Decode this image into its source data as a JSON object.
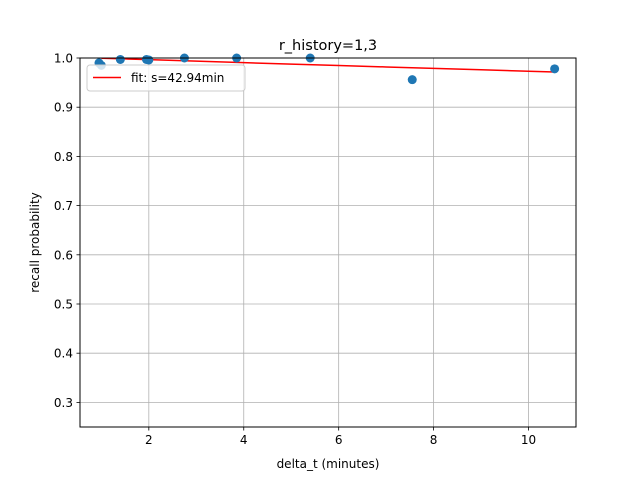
{
  "chart_data": {
    "type": "scatter",
    "title": "r_history=1,3",
    "xlabel": "delta_t (minutes)",
    "ylabel": "recall probability",
    "xlim": [
      0.55,
      11.0
    ],
    "ylim": [
      0.25,
      1.0
    ],
    "xticks": [
      2,
      4,
      6,
      8,
      10
    ],
    "yticks": [
      0.3,
      0.4,
      0.5,
      0.6,
      0.7,
      0.8,
      0.9,
      1.0
    ],
    "xtick_labels": [
      "2",
      "4",
      "6",
      "8",
      "10"
    ],
    "ytick_labels": [
      "0.3",
      "0.4",
      "0.5",
      "0.6",
      "0.7",
      "0.8",
      "0.9",
      "1.0"
    ],
    "grid": true,
    "legend_position": "top-left",
    "colors": {
      "points": "#1f77b4",
      "fit": "#ff0000",
      "grid": "#b0b0b0"
    },
    "series": [
      {
        "kind": "points",
        "x": [
          0.95,
          1.0,
          1.4,
          1.95,
          2.0,
          2.75,
          3.85,
          5.4,
          7.55,
          10.55
        ],
        "y": [
          0.99,
          0.985,
          0.997,
          0.997,
          0.996,
          1.0,
          1.0,
          1.0,
          0.956,
          0.978
        ]
      },
      {
        "kind": "fit",
        "name": "fit: s=42.94min",
        "x": [
          1.0,
          1.5,
          2.0,
          3.0,
          4.0,
          5.0,
          6.0,
          7.0,
          8.0,
          9.0,
          10.0,
          10.55
        ],
        "y": [
          0.9995,
          0.9982,
          0.9966,
          0.9936,
          0.9906,
          0.9876,
          0.9847,
          0.9818,
          0.9789,
          0.976,
          0.9731,
          0.9715
        ]
      }
    ]
  }
}
